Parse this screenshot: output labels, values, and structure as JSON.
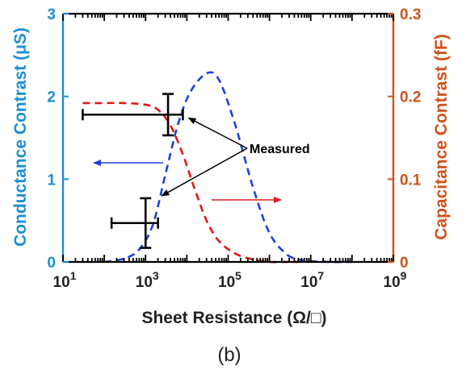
{
  "chart_data": {
    "type": "line",
    "xscale": "log",
    "xlabel": "Sheet Resistance (Ω/□)",
    "ylabel_left": "Conductance Contrast (μS)",
    "ylabel_right": "Capacitance Contrast (fF)",
    "xlim": [
      10,
      1000000000
    ],
    "ylim_left": [
      0,
      3
    ],
    "ylim_right": [
      0,
      0.3
    ],
    "x_ticks": [
      {
        "value": 10,
        "base": "10",
        "exp": "1"
      },
      {
        "value": 1000,
        "base": "10",
        "exp": "3"
      },
      {
        "value": 100000,
        "base": "10",
        "exp": "5"
      },
      {
        "value": 10000000,
        "base": "10",
        "exp": "7"
      },
      {
        "value": 1000000000,
        "base": "10",
        "exp": "9"
      }
    ],
    "y_ticks_left": [
      {
        "value": 0,
        "label": "0"
      },
      {
        "value": 1,
        "label": "1"
      },
      {
        "value": 2,
        "label": "2"
      },
      {
        "value": 3,
        "label": "3"
      }
    ],
    "y_ticks_right": [
      {
        "value": 0,
        "label": "0"
      },
      {
        "value": 0.1,
        "label": "0.1"
      },
      {
        "value": 0.2,
        "label": "0.2"
      },
      {
        "value": 0.3,
        "label": "0.3"
      }
    ],
    "colors": {
      "conductance": "#1f3fe0",
      "capacitance": "#e01818",
      "left_axis": "#1d8fd6",
      "right_axis": "#d0531b",
      "measured": "#000000"
    },
    "series": [
      {
        "axis": "left",
        "style": "dashed",
        "x": [
          100,
          300,
          700,
          1500,
          3000,
          6000,
          12000,
          30000,
          60000,
          150000,
          400000,
          1000000,
          2500000,
          5000000,
          10000000,
          30000000,
          100000000
        ],
        "y": [
          0.0,
          0.04,
          0.15,
          0.45,
          1.05,
          1.65,
          2.05,
          2.28,
          2.2,
          1.65,
          0.9,
          0.35,
          0.1,
          0.03,
          0.01,
          0.0,
          0.0
        ]
      },
      {
        "axis": "right",
        "style": "dashed",
        "x": [
          30,
          100,
          300,
          1000,
          2000,
          4000,
          8000,
          15000,
          30000,
          60000,
          150000,
          400000,
          1000000,
          2000000,
          5000000
        ],
        "y": [
          0.192,
          0.192,
          0.192,
          0.19,
          0.184,
          0.165,
          0.13,
          0.09,
          0.05,
          0.025,
          0.01,
          0.003,
          0.0,
          0.0,
          0.0
        ]
      }
    ],
    "measured_points": [
      {
        "x": 1000,
        "y": 0.47,
        "x_err": [
          150,
          2000
        ],
        "y_err": [
          0.17,
          0.77
        ]
      },
      {
        "x": 3500,
        "y": 1.78,
        "x_err": [
          30,
          8000
        ],
        "y_err": [
          1.53,
          2.03
        ]
      }
    ],
    "annotations": {
      "measured_label": "Measured"
    },
    "caption": "(b)"
  }
}
